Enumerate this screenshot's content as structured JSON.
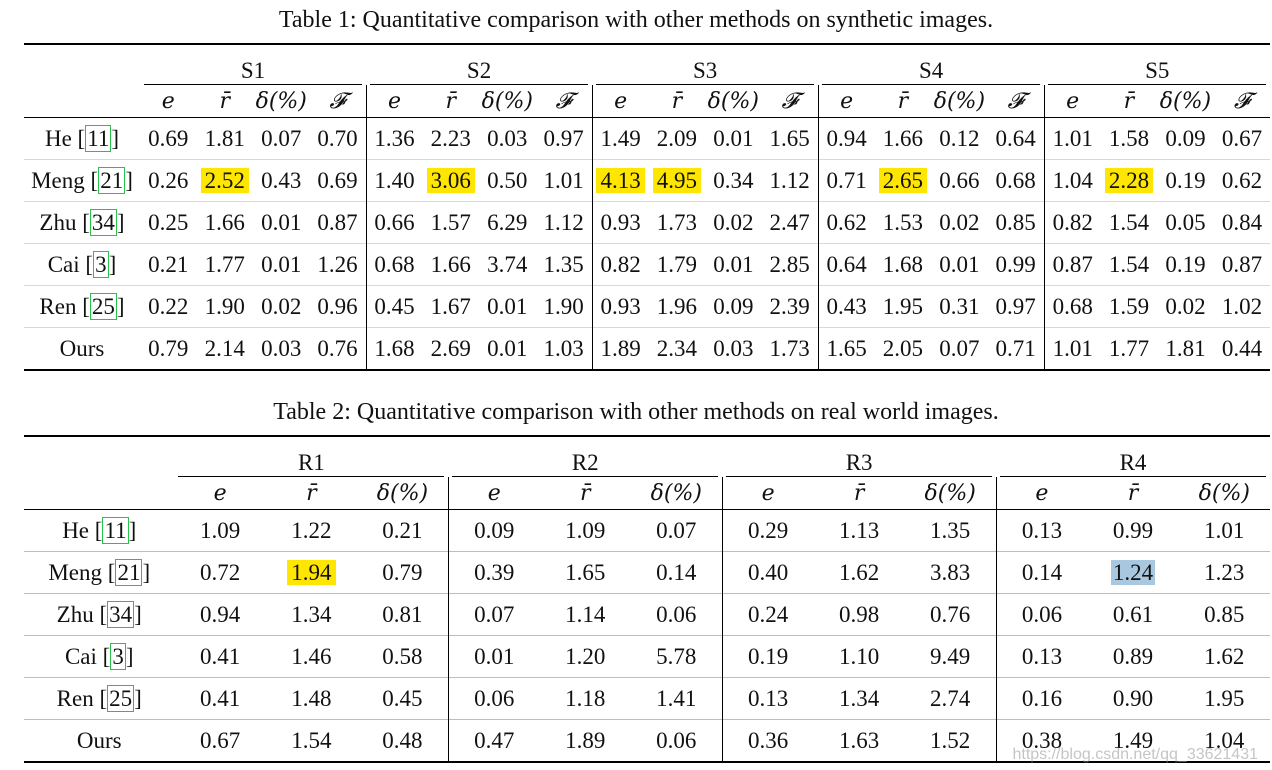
{
  "table1": {
    "caption": "Table 1: Quantitative comparison with other methods on synthetic images.",
    "groups": [
      "S1",
      "S2",
      "S3",
      "S4",
      "S5"
    ],
    "metrics": [
      "e",
      "r̄",
      "δ(%)",
      "𝓕"
    ],
    "rows": [
      {
        "method": "He",
        "cite": "11",
        "values": [
          "0.69",
          "1.81",
          "0.07",
          "0.70",
          "1.36",
          "2.23",
          "0.03",
          "0.97",
          "1.49",
          "2.09",
          "0.01",
          "1.65",
          "0.94",
          "1.66",
          "0.12",
          "0.64",
          "1.01",
          "1.58",
          "0.09",
          "0.67"
        ]
      },
      {
        "method": "Meng",
        "cite": "21",
        "values": [
          "0.26",
          "2.52",
          "0.43",
          "0.69",
          "1.40",
          "3.06",
          "0.50",
          "1.01",
          "4.13",
          "4.95",
          "0.34",
          "1.12",
          "0.71",
          "2.65",
          "0.66",
          "0.68",
          "1.04",
          "2.28",
          "0.19",
          "0.62"
        ]
      },
      {
        "method": "Zhu",
        "cite": "34",
        "values": [
          "0.25",
          "1.66",
          "0.01",
          "0.87",
          "0.66",
          "1.57",
          "6.29",
          "1.12",
          "0.93",
          "1.73",
          "0.02",
          "2.47",
          "0.62",
          "1.53",
          "0.02",
          "0.85",
          "0.82",
          "1.54",
          "0.05",
          "0.84"
        ]
      },
      {
        "method": "Cai",
        "cite": "3",
        "values": [
          "0.21",
          "1.77",
          "0.01",
          "1.26",
          "0.68",
          "1.66",
          "3.74",
          "1.35",
          "0.82",
          "1.79",
          "0.01",
          "2.85",
          "0.64",
          "1.68",
          "0.01",
          "0.99",
          "0.87",
          "1.54",
          "0.19",
          "0.87"
        ]
      },
      {
        "method": "Ren",
        "cite": "25",
        "values": [
          "0.22",
          "1.90",
          "0.02",
          "0.96",
          "0.45",
          "1.67",
          "0.01",
          "1.90",
          "0.93",
          "1.96",
          "0.09",
          "2.39",
          "0.43",
          "1.95",
          "0.31",
          "0.97",
          "0.68",
          "1.59",
          "0.02",
          "1.02"
        ]
      },
      {
        "method": "Ours",
        "cite": "",
        "values": [
          "0.79",
          "2.14",
          "0.03",
          "0.76",
          "1.68",
          "2.69",
          "0.01",
          "1.03",
          "1.89",
          "2.34",
          "0.03",
          "1.73",
          "1.65",
          "2.05",
          "0.07",
          "0.71",
          "1.01",
          "1.77",
          "1.81",
          "0.44"
        ]
      }
    ],
    "highlights": {
      "yellow": [
        "1-1",
        "1-5",
        "1-8",
        "1-9",
        "1-13",
        "1-17"
      ],
      "yellow_merge": [
        "1-8:1-9"
      ]
    }
  },
  "table2": {
    "caption": "Table 2: Quantitative comparison with other methods on real world images.",
    "groups": [
      "R1",
      "R2",
      "R3",
      "R4"
    ],
    "metrics": [
      "e",
      "r̄",
      "δ(%)"
    ],
    "rows": [
      {
        "method": "He",
        "cite": "11",
        "values": [
          "1.09",
          "1.22",
          "0.21",
          "0.09",
          "1.09",
          "0.07",
          "0.29",
          "1.13",
          "1.35",
          "0.13",
          "0.99",
          "1.01"
        ]
      },
      {
        "method": "Meng",
        "cite": "21",
        "values": [
          "0.72",
          "1.94",
          "0.79",
          "0.39",
          "1.65",
          "0.14",
          "0.40",
          "1.62",
          "3.83",
          "0.14",
          "1.24",
          "1.23"
        ]
      },
      {
        "method": "Zhu",
        "cite": "34",
        "values": [
          "0.94",
          "1.34",
          "0.81",
          "0.07",
          "1.14",
          "0.06",
          "0.24",
          "0.98",
          "0.76",
          "0.06",
          "0.61",
          "0.85"
        ]
      },
      {
        "method": "Cai",
        "cite": "3",
        "values": [
          "0.41",
          "1.46",
          "0.58",
          "0.01",
          "1.20",
          "5.78",
          "0.19",
          "1.10",
          "9.49",
          "0.13",
          "0.89",
          "1.62"
        ]
      },
      {
        "method": "Ren",
        "cite": "25",
        "values": [
          "0.41",
          "1.48",
          "0.45",
          "0.06",
          "1.18",
          "1.41",
          "0.13",
          "1.34",
          "2.74",
          "0.16",
          "0.90",
          "1.95"
        ]
      },
      {
        "method": "Ours",
        "cite": "",
        "values": [
          "0.67",
          "1.54",
          "0.48",
          "0.47",
          "1.89",
          "0.06",
          "0.36",
          "1.63",
          "1.52",
          "0.38",
          "1.49",
          "1.04"
        ]
      }
    ],
    "highlights": {
      "yellow": [
        "1-1"
      ],
      "blue": [
        "1-10"
      ]
    }
  },
  "watermark": "https://blog.csdn.net/qq_33621431",
  "colors": {
    "highlight_yellow": "#ffe600",
    "highlight_blue": "#a9c7de",
    "cite_box": "#27c24c"
  }
}
